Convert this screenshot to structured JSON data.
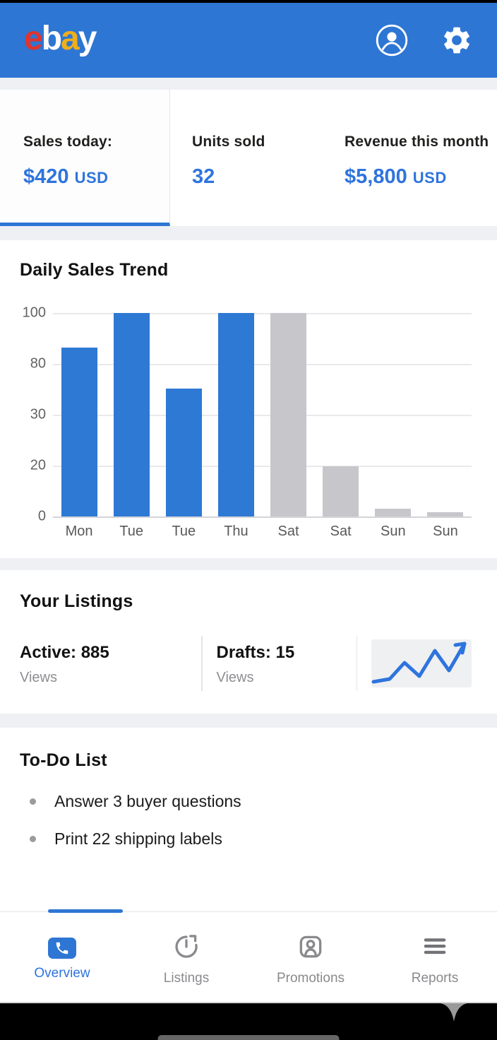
{
  "colors": {
    "accent_blue": "#2e76d3",
    "text_blue": "#2e74dd",
    "bar_blue": "#2e79d4",
    "bar_gray": "#c6c6cb",
    "inactive_gray": "#8a8a8e"
  },
  "header": {
    "logo_letters": [
      {
        "ch": "e",
        "color": "#e0342d"
      },
      {
        "ch": "b",
        "color": "#ffffff"
      },
      {
        "ch": "a",
        "color": "#efaf19"
      },
      {
        "ch": "y",
        "color": "#ffffff"
      }
    ]
  },
  "stats": {
    "cards": [
      {
        "label": "Sales today:",
        "value": "$420",
        "unit": "USD"
      },
      {
        "label": "Units sold",
        "value": "32",
        "unit": ""
      },
      {
        "label": "Revenue this month",
        "value": "$5,800",
        "unit": "USD"
      }
    ]
  },
  "chart_data": {
    "type": "bar",
    "title": "Daily Sales Trend",
    "categories": [
      "Mon",
      "Tue",
      "Tue",
      "Thu",
      "Sat",
      "Sat",
      "Sun",
      "Sun"
    ],
    "values": [
      87,
      100,
      55,
      100,
      100,
      20,
      3,
      2
    ],
    "heights_pct": [
      83,
      100,
      63,
      100,
      100,
      24.5,
      3.8,
      2.1
    ],
    "bar_colors": [
      "#2e79d4",
      "#2e79d4",
      "#2e79d4",
      "#2e79d4",
      "#c6c6cb",
      "#c6c6cb",
      "#c6c6cb",
      "#c6c6cb"
    ],
    "y_tick_labels": [
      "100",
      "80",
      "30",
      "20",
      "0"
    ],
    "xlabel": "",
    "ylabel": "",
    "grid": true,
    "legend": "none"
  },
  "listings": {
    "title": "Your Listings",
    "stats": [
      {
        "value": "Active: 885",
        "sub": "Views"
      },
      {
        "value": "Drafts: 15",
        "sub": "Views"
      }
    ],
    "sparkline": {
      "color": "#2e74dd",
      "points": [
        [
          3,
          60
        ],
        [
          26,
          56
        ],
        [
          47,
          33
        ],
        [
          68,
          52
        ],
        [
          90,
          16
        ],
        [
          110,
          44
        ],
        [
          132,
          6
        ]
      ],
      "arrow": [
        [
          119,
          8
        ],
        [
          132,
          6
        ],
        [
          129,
          19
        ]
      ]
    }
  },
  "todo": {
    "title": "To-Do List",
    "items": [
      "Answer 3 buyer questions",
      "Print 22 shipping labels"
    ]
  },
  "tabbar": {
    "items": [
      {
        "label": "Overview",
        "active": true
      },
      {
        "label": "Listings",
        "active": false
      },
      {
        "label": "Promotions",
        "active": false
      },
      {
        "label": "Reports",
        "active": false
      }
    ]
  }
}
